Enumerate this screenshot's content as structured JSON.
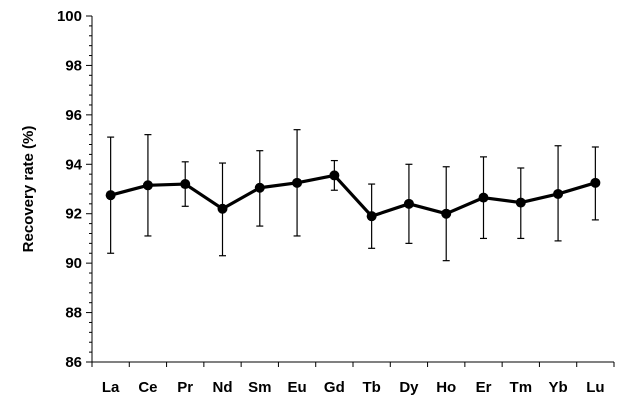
{
  "chart_data": {
    "type": "line",
    "title": "",
    "xlabel": "",
    "ylabel": "Recovery rate (%)",
    "ylim": [
      86,
      100
    ],
    "yticks": [
      86,
      88,
      90,
      92,
      94,
      96,
      98,
      100
    ],
    "grid": false,
    "legend": "none",
    "categories": [
      "La",
      "Ce",
      "Pr",
      "Nd",
      "Sm",
      "Eu",
      "Gd",
      "Tb",
      "Dy",
      "Ho",
      "Er",
      "Tm",
      "Yb",
      "Lu"
    ],
    "series": [
      {
        "values": [
          92.75,
          93.15,
          93.2,
          92.2,
          93.05,
          93.25,
          93.55,
          91.9,
          92.4,
          92.0,
          92.65,
          92.45,
          92.8,
          93.25
        ],
        "error_high": [
          95.1,
          95.2,
          94.1,
          94.05,
          94.55,
          95.4,
          94.15,
          93.2,
          94.0,
          93.9,
          94.3,
          93.85,
          94.75,
          94.7
        ],
        "error_low": [
          90.4,
          91.1,
          92.3,
          90.3,
          91.5,
          91.1,
          92.95,
          90.6,
          90.8,
          90.1,
          91.0,
          91.0,
          90.9,
          91.75
        ],
        "color": "#000000"
      }
    ]
  }
}
